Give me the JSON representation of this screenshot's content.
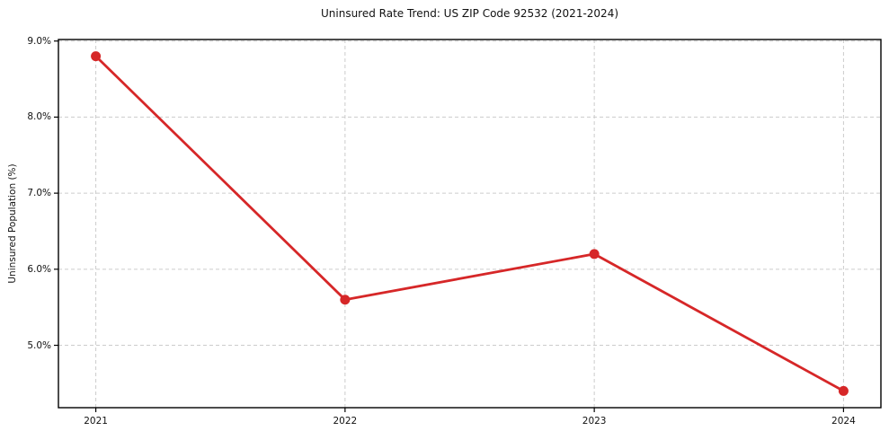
{
  "chart_data": {
    "type": "line",
    "title": "Uninsured Rate Trend: US ZIP Code 92532 (2021-2024)",
    "xlabel": "",
    "ylabel": "Uninsured Population (%)",
    "x": [
      2021,
      2022,
      2023,
      2024
    ],
    "x_tick_labels": [
      "2021",
      "2022",
      "2023",
      "2024"
    ],
    "y_ticks": [
      5.0,
      6.0,
      7.0,
      8.0,
      9.0
    ],
    "y_tick_labels": [
      "5.0%",
      "6.0%",
      "7.0%",
      "8.0%",
      "9.0%"
    ],
    "series": [
      {
        "name": "Uninsured Rate",
        "values": [
          8.8,
          5.6,
          6.2,
          4.4
        ]
      }
    ],
    "xlim": [
      2020.85,
      2024.15
    ],
    "ylim": [
      4.18,
      9.02
    ],
    "grid": true,
    "grid_style": "dashed",
    "legend_position": "none",
    "line_color": "#d62728",
    "marker": "circle",
    "grid_color": "#cccccc",
    "spine_color": "#000000",
    "background_color": "#ffffff"
  }
}
